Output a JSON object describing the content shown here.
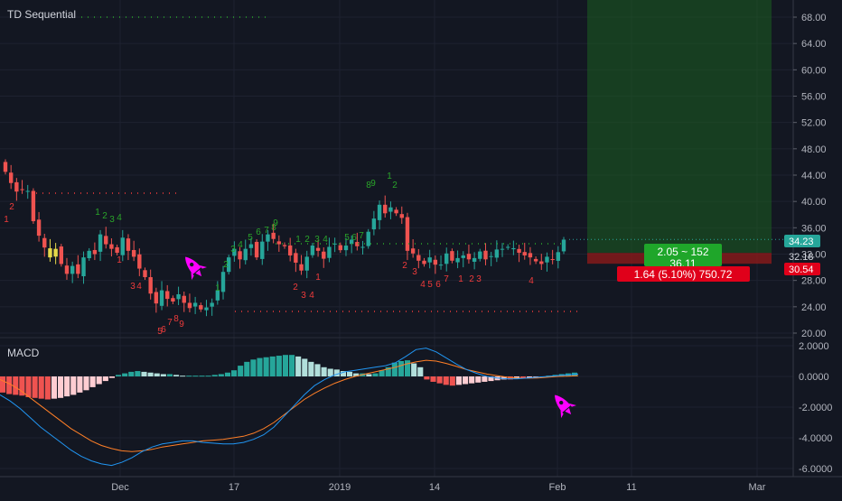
{
  "main_pane": {
    "title": "TD Sequential"
  },
  "macd_pane": {
    "title": "MACD"
  },
  "colors": {
    "background": "#131722",
    "grid": "#1e2230",
    "bull_candle": "#26a69a",
    "bear_candle": "#ef5350",
    "setup_up": "#2aa52a",
    "setup_down": "#ef3b3b",
    "macd_line": "#2196f3",
    "signal_line": "#ff7f27",
    "rocket": "#ff00ff",
    "target_zone": "#1b5e20",
    "stop_zone": "#8b1a1a"
  },
  "icons": [
    "rocket-icon",
    "rocket-icon"
  ],
  "chart_data": [
    {
      "type": "candlestick",
      "title": "TD Sequential",
      "y_ticks": [
        "68.00",
        "64.00",
        "60.00",
        "56.00",
        "52.00",
        "48.00",
        "44.00",
        "40.00",
        "36.00",
        "32.00",
        "28.00",
        "24.00",
        "20.00"
      ],
      "x_ticks": [
        "Dec",
        "17",
        "2019",
        "14",
        "Feb",
        "11",
        "Mar"
      ],
      "ylim": [
        20,
        70
      ],
      "current_price": "34.23",
      "price_markers": [
        "34.23",
        "32.18",
        "30.54"
      ],
      "position_box": {
        "profit_label": "2.05 ~ 152",
        "profit_sub": "36.11",
        "loss_label": "1.64 (5.10%) 750.72"
      },
      "close": [
        44.5,
        42.8,
        41.5,
        41.8,
        41.6,
        37,
        34.8,
        33,
        31.5,
        32.8,
        30.5,
        29,
        30.2,
        29,
        31.5,
        32.5,
        32,
        35,
        33.5,
        32.8,
        32.2,
        34.5,
        32.5,
        31.6,
        29.8,
        28.5,
        26,
        24.5,
        26.5,
        25.2,
        24.8,
        25.9,
        24.6,
        23.8,
        24.6,
        23.6,
        23.9,
        24.6,
        26.5,
        29.3,
        31.5,
        32.8,
        31.2,
        32.8,
        33.5,
        31.5,
        33.9,
        35,
        34.3,
        33.5,
        33.2,
        31.8,
        30.7,
        29.5,
        31.6,
        33.3,
        32.5,
        31.3,
        33.1,
        33.6,
        32.6,
        33.3,
        34.2,
        33.2,
        33.1,
        35.4,
        37.4,
        39.5,
        38.2,
        39.1,
        38.2,
        37.5,
        32.5,
        32.1,
        31,
        30.5,
        31.5,
        30.4,
        30.4,
        32.1,
        31,
        31.4,
        31.8,
        31.2,
        31.4,
        32.4,
        31.2,
        31.7,
        32.7,
        32.8,
        33.1,
        32.9,
        32.2,
        31.8,
        31.5,
        30.9,
        30.5,
        31.6,
        31.1,
        32.3,
        34.2
      ],
      "td_setup_up_counts": [
        "1",
        "2",
        "3",
        "4",
        "1",
        "2",
        "3",
        "4",
        "5",
        "6",
        "7",
        "8",
        "9",
        "1",
        "2",
        "3",
        "4",
        "5",
        "6",
        "7",
        "8",
        "9",
        "1",
        "2"
      ],
      "td_setup_down_counts": [
        "1",
        "2",
        "3",
        "4",
        "5",
        "6",
        "7",
        "8",
        "9",
        "1",
        "2",
        "3",
        "4",
        "1",
        "2",
        "3",
        "4",
        "5",
        "6",
        "7",
        "1",
        "2",
        "3",
        "4"
      ]
    },
    {
      "type": "macd",
      "title": "MACD",
      "y_ticks": [
        "2.0000",
        "0.0000",
        "-2.0000",
        "-4.0000",
        "-6.0000"
      ],
      "ylim": [
        -6.2,
        2.2
      ],
      "histogram": [
        -1.05,
        -1.15,
        -1.2,
        -1.25,
        -1.35,
        -1.4,
        -1.45,
        -1.5,
        -1.45,
        -1.4,
        -1.3,
        -1.2,
        -1.05,
        -0.9,
        -0.7,
        -0.5,
        -0.3,
        -0.1,
        0.1,
        0.2,
        0.3,
        0.35,
        0.3,
        0.25,
        0.2,
        0.15,
        0.15,
        0.1,
        0.05,
        0.05,
        0.05,
        0.05,
        0.05,
        0.1,
        0.15,
        0.25,
        0.4,
        0.7,
        0.95,
        1.1,
        1.2,
        1.25,
        1.3,
        1.35,
        1.4,
        1.4,
        1.3,
        1.15,
        0.95,
        0.8,
        0.6,
        0.5,
        0.45,
        0.35,
        0.3,
        0.2,
        0.2,
        0.15,
        0.2,
        0.4,
        0.6,
        0.9,
        1.0,
        1.05,
        0.85,
        0.6,
        -0.2,
        -0.35,
        -0.45,
        -0.55,
        -0.6,
        -0.55,
        -0.5,
        -0.45,
        -0.4,
        -0.35,
        -0.3,
        -0.25,
        -0.2,
        -0.2,
        -0.15,
        -0.15,
        -0.1,
        -0.05,
        0,
        0.05,
        0.1,
        0.15,
        0.2,
        0.25
      ],
      "macd_line": [
        -1.2,
        -1.6,
        -2.1,
        -2.7,
        -3.3,
        -3.8,
        -4.3,
        -4.8,
        -5.2,
        -5.5,
        -5.7,
        -5.8,
        -5.6,
        -5.3,
        -4.9,
        -4.6,
        -4.4,
        -4.3,
        -4.2,
        -4.2,
        -4.3,
        -4.35,
        -4.4,
        -4.4,
        -4.3,
        -4.1,
        -3.8,
        -3.3,
        -2.6,
        -1.9,
        -1.2,
        -0.6,
        -0.2,
        0.1,
        0.3,
        0.4,
        0.5,
        0.6,
        0.7,
        0.9,
        1.3,
        1.75,
        1.85,
        1.6,
        1.2,
        0.8,
        0.45,
        0.2,
        0,
        -0.1,
        -0.15,
        -0.15,
        -0.1,
        -0.05,
        0,
        0.05,
        0.1,
        0.15
      ],
      "signal_line": [
        -0.2,
        -0.5,
        -0.9,
        -1.4,
        -1.9,
        -2.4,
        -2.9,
        -3.4,
        -3.8,
        -4.2,
        -4.5,
        -4.7,
        -4.85,
        -4.9,
        -4.85,
        -4.75,
        -4.6,
        -4.5,
        -4.4,
        -4.3,
        -4.2,
        -4.15,
        -4.1,
        -4.0,
        -3.9,
        -3.7,
        -3.4,
        -3.0,
        -2.5,
        -2.0,
        -1.5,
        -1.1,
        -0.75,
        -0.45,
        -0.2,
        0,
        0.15,
        0.3,
        0.45,
        0.6,
        0.8,
        0.95,
        1.05,
        1.0,
        0.85,
        0.65,
        0.45,
        0.3,
        0.15,
        0.05,
        -0.05,
        -0.1,
        -0.12,
        -0.1,
        -0.05,
        0,
        0.02,
        0.05
      ]
    }
  ]
}
